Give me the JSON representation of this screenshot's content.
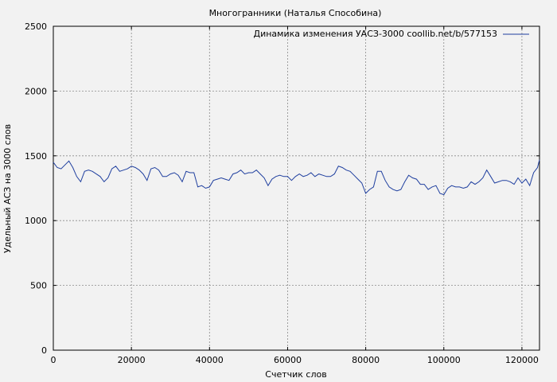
{
  "chart_data": {
    "type": "line",
    "title": "Многогранники (Наталья Способина)",
    "xlabel": "Счетчик слов",
    "ylabel": "Удельный АСЗ на 3000 слов",
    "xlim": [
      0,
      124500
    ],
    "ylim": [
      0,
      2500
    ],
    "xticks": [
      0,
      20000,
      40000,
      60000,
      80000,
      100000,
      120000
    ],
    "yticks": [
      0,
      500,
      1000,
      1500,
      2000,
      2500
    ],
    "grid": true,
    "legend_position": "top-right",
    "series": [
      {
        "name": "Динамика изменения УАСЗ-3000 coollib.net/b/577153",
        "color": "#1f3f9f",
        "x": [
          0,
          1000,
          2000,
          3000,
          4000,
          5000,
          6000,
          7000,
          8000,
          9000,
          10000,
          11000,
          12000,
          13000,
          14000,
          15000,
          16000,
          17000,
          18000,
          19000,
          20000,
          21000,
          22000,
          23000,
          24000,
          25000,
          26000,
          27000,
          28000,
          29000,
          30000,
          31000,
          32000,
          33000,
          34000,
          35000,
          36000,
          37000,
          38000,
          39000,
          40000,
          41000,
          42000,
          43000,
          44000,
          45000,
          46000,
          47000,
          48000,
          49000,
          50000,
          51000,
          52000,
          53000,
          54000,
          55000,
          56000,
          57000,
          58000,
          59000,
          60000,
          61000,
          62000,
          63000,
          64000,
          65000,
          66000,
          67000,
          68000,
          69000,
          70000,
          71000,
          72000,
          73000,
          74000,
          75000,
          76000,
          77000,
          78000,
          79000,
          80000,
          81000,
          82000,
          83000,
          84000,
          85000,
          86000,
          87000,
          88000,
          89000,
          90000,
          91000,
          92000,
          93000,
          94000,
          95000,
          96000,
          97000,
          98000,
          99000,
          100000,
          101000,
          102000,
          103000,
          104000,
          105000,
          106000,
          107000,
          108000,
          109000,
          110000,
          111000,
          112000,
          113000,
          114000,
          115000,
          116000,
          117000,
          118000,
          119000,
          120000,
          121000,
          122000,
          123000,
          124000,
          124500
        ],
        "y": [
          1450,
          1410,
          1400,
          1430,
          1460,
          1410,
          1340,
          1300,
          1380,
          1390,
          1380,
          1360,
          1340,
          1300,
          1330,
          1400,
          1420,
          1380,
          1390,
          1400,
          1420,
          1410,
          1390,
          1360,
          1310,
          1400,
          1410,
          1390,
          1340,
          1340,
          1360,
          1370,
          1350,
          1300,
          1380,
          1370,
          1370,
          1260,
          1270,
          1250,
          1260,
          1310,
          1320,
          1330,
          1320,
          1310,
          1360,
          1370,
          1390,
          1360,
          1370,
          1370,
          1390,
          1360,
          1330,
          1270,
          1320,
          1340,
          1350,
          1340,
          1340,
          1310,
          1340,
          1360,
          1340,
          1350,
          1370,
          1340,
          1360,
          1350,
          1340,
          1340,
          1360,
          1420,
          1410,
          1390,
          1380,
          1350,
          1320,
          1290,
          1210,
          1240,
          1260,
          1380,
          1380,
          1310,
          1260,
          1240,
          1230,
          1240,
          1300,
          1350,
          1330,
          1320,
          1280,
          1280,
          1240,
          1260,
          1270,
          1210,
          1200,
          1250,
          1270,
          1260,
          1260,
          1250,
          1260,
          1300,
          1280,
          1300,
          1330,
          1390,
          1340,
          1290,
          1300,
          1310,
          1310,
          1300,
          1280,
          1330,
          1290,
          1320,
          1270,
          1370,
          1410,
          1470
        ]
      }
    ]
  }
}
